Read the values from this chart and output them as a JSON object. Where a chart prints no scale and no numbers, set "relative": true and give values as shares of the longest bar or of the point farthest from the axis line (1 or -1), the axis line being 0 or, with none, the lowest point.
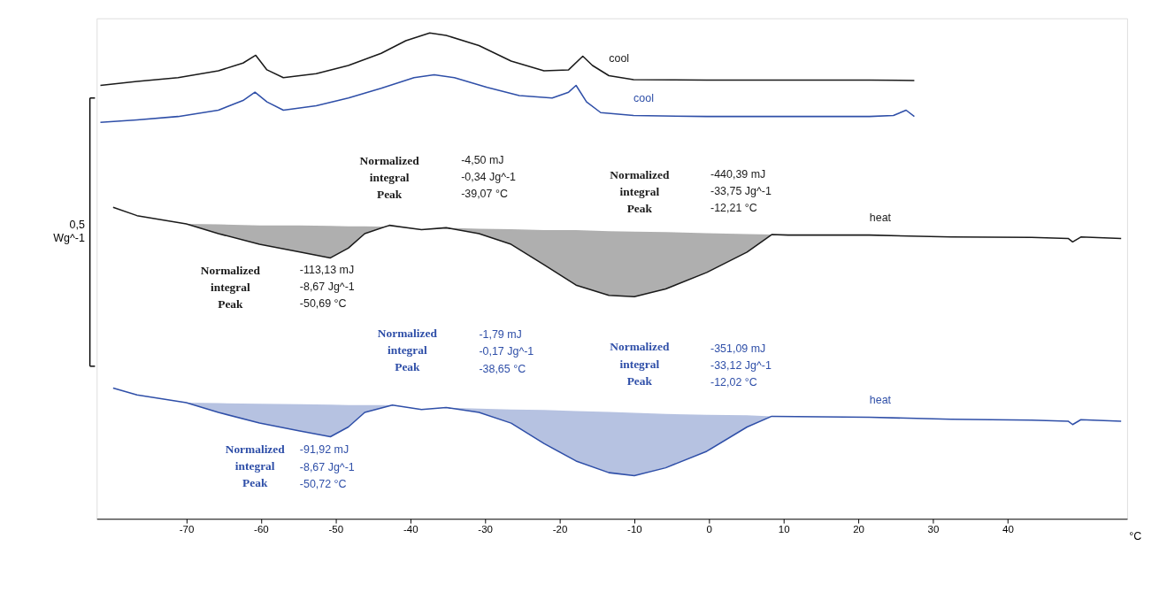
{
  "chart_data": {
    "type": "line",
    "relative": true,
    "grid": false,
    "marker": "none",
    "line_style": "solid",
    "xlabel": "°C",
    "ylabel": "0,5 Wg^-1",
    "xlim": [
      -82,
      56
    ],
    "xticks": [
      -70,
      -60,
      -50,
      -40,
      -30,
      -20,
      -10,
      0,
      10,
      20,
      30,
      40
    ],
    "series": [
      {
        "name": "cool",
        "color": "#1a1a1a",
        "x": [
          -81.5,
          -76.6,
          -71.1,
          -65.7,
          -62.4,
          -60.7,
          -59.2,
          -57.0,
          -52.6,
          -48.3,
          -43.9,
          -40.6,
          -37.4,
          -35.2,
          -30.8,
          -26.5,
          -22.1,
          -18.8,
          -16.9,
          -15.6,
          -13.4,
          -10.1,
          -0.3,
          10.6,
          21.5,
          27.5
        ],
        "values": [
          0.892,
          0.9,
          0.908,
          0.922,
          0.938,
          0.954,
          0.924,
          0.908,
          0.916,
          0.933,
          0.958,
          0.984,
          1.0,
          0.995,
          0.974,
          0.942,
          0.922,
          0.924,
          0.952,
          0.933,
          0.912,
          0.904,
          0.903,
          0.903,
          0.903,
          0.902
        ]
      },
      {
        "name": "cool",
        "color": "#2f4fa8",
        "x": [
          -81.5,
          -76.6,
          -71.1,
          -65.7,
          -62.4,
          -60.8,
          -59.2,
          -57.0,
          -52.6,
          -48.3,
          -43.9,
          -39.5,
          -36.8,
          -34.1,
          -29.7,
          -25.4,
          -21.0,
          -18.8,
          -17.8,
          -16.4,
          -14.5,
          -10.1,
          -0.3,
          10.6,
          21.5,
          24.7,
          26.4,
          27.5
        ],
        "values": [
          0.816,
          0.821,
          0.828,
          0.841,
          0.861,
          0.878,
          0.858,
          0.841,
          0.85,
          0.866,
          0.886,
          0.908,
          0.914,
          0.908,
          0.888,
          0.871,
          0.866,
          0.878,
          0.892,
          0.858,
          0.836,
          0.83,
          0.828,
          0.828,
          0.828,
          0.83,
          0.841,
          0.828
        ]
      },
      {
        "name": "heat",
        "color": "#1a1a1a",
        "x": [
          -79.8,
          -76.6,
          -70.0,
          -65.7,
          -60.2,
          -54.8,
          -50.7,
          -48.3,
          -46.1,
          -42.8,
          -38.5,
          -35.2,
          -30.8,
          -26.5,
          -22.1,
          -17.8,
          -13.4,
          -10.0,
          -5.8,
          -0.3,
          5.1,
          8.4,
          10.6,
          21.5,
          32.4,
          43.2,
          48.1,
          48.7,
          49.8,
          55.2
        ],
        "values": [
          0.641,
          0.624,
          0.607,
          0.587,
          0.565,
          0.549,
          0.537,
          0.557,
          0.587,
          0.604,
          0.595,
          0.599,
          0.587,
          0.565,
          0.523,
          0.481,
          0.46,
          0.457,
          0.473,
          0.507,
          0.549,
          0.585,
          0.584,
          0.584,
          0.58,
          0.579,
          0.577,
          0.57,
          0.58,
          0.577
        ],
        "lower": [
          null,
          null,
          0.607,
          0.606,
          0.604,
          0.604,
          0.603,
          0.602,
          0.602,
          0.601,
          null,
          0.599,
          0.597,
          0.596,
          0.594,
          0.594,
          0.592,
          0.591,
          0.59,
          0.588,
          0.586,
          0.585,
          null,
          null,
          null,
          null,
          null,
          null,
          null,
          null
        ],
        "upper": [
          null,
          null,
          0.607,
          0.587,
          0.565,
          0.549,
          0.537,
          0.557,
          0.587,
          0.604,
          null,
          0.599,
          0.587,
          0.565,
          0.523,
          0.481,
          0.46,
          0.457,
          0.473,
          0.507,
          0.549,
          0.585,
          null,
          null,
          null,
          null,
          null,
          null,
          null,
          null
        ]
      },
      {
        "name": "heat",
        "color": "#2f4fa8",
        "x": [
          -79.8,
          -76.6,
          -70.0,
          -65.7,
          -60.2,
          -54.8,
          -50.7,
          -48.3,
          -46.1,
          -42.4,
          -38.5,
          -35.2,
          -30.8,
          -26.5,
          -22.1,
          -17.8,
          -13.4,
          -10.0,
          -5.8,
          -0.3,
          5.1,
          8.4,
          21.5,
          32.4,
          43.2,
          48.1,
          48.7,
          49.8,
          55.2
        ],
        "values": [
          0.269,
          0.255,
          0.239,
          0.219,
          0.197,
          0.181,
          0.169,
          0.189,
          0.219,
          0.234,
          0.225,
          0.229,
          0.219,
          0.197,
          0.155,
          0.119,
          0.095,
          0.089,
          0.105,
          0.139,
          0.189,
          0.211,
          0.209,
          0.205,
          0.203,
          0.201,
          0.194,
          0.204,
          0.201
        ],
        "lower": [
          null,
          null,
          0.239,
          0.238,
          0.237,
          0.236,
          0.235,
          0.234,
          0.234,
          0.234,
          null,
          0.229,
          0.227,
          0.225,
          0.224,
          0.222,
          0.22,
          0.218,
          0.216,
          0.214,
          0.213,
          0.211,
          null,
          null,
          null,
          null,
          null,
          null,
          null
        ],
        "upper": [
          null,
          null,
          0.239,
          0.219,
          0.197,
          0.181,
          0.169,
          0.189,
          0.219,
          0.234,
          null,
          0.229,
          0.219,
          0.197,
          0.155,
          0.119,
          0.095,
          0.089,
          0.105,
          0.139,
          0.189,
          0.211,
          null,
          null,
          null,
          null,
          null,
          null,
          null
        ]
      }
    ],
    "annotations": [
      "Normalized\nintegral\nPeak",
      "-4,50 mJ\n-0,34 Jg^-1\n-39,07 °C",
      "Normalized\nintegral\nPeak",
      "-440,39 mJ\n-33,75 Jg^-1\n-12,21 °C",
      "Normalized\nintegral\nPeak",
      "-113,13 mJ\n-8,67 Jg^-1\n-50,69 °C",
      "Normalized\nintegral\nPeak",
      "-1,79 mJ\n-0,17 Jg^-1\n-38,65 °C",
      "Normalized\nintegral\nPeak",
      "-351,09 mJ\n-33,12 Jg^-1\n-12,02 °C",
      "Normalized\nintegral\nPeak",
      "-91,92 mJ\n-8,67 Jg^-1\n-50,72 °C"
    ]
  }
}
